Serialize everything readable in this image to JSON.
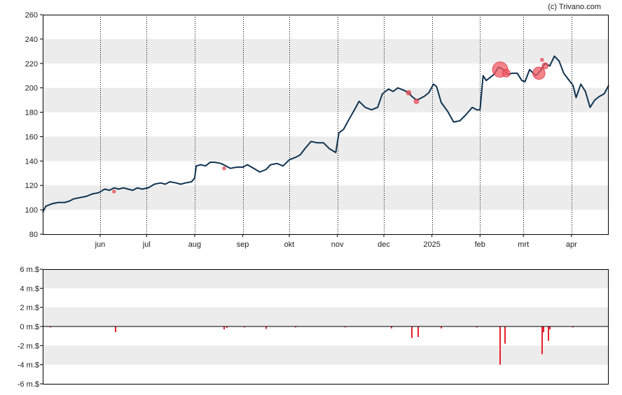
{
  "credit": "(c) Trivano.com",
  "colors": {
    "price_line": "#0f3350",
    "band": "#ececec",
    "volume_bar": "#e8212b",
    "insider_marker": "#f05a64",
    "axis": "#000000"
  },
  "chart_data": [
    {
      "type": "line",
      "title": "",
      "xlabel": "",
      "ylabel": "",
      "ylim": [
        80,
        260
      ],
      "yticks": [
        80,
        100,
        120,
        140,
        160,
        180,
        200,
        220,
        240,
        260
      ],
      "ytick_labels": [
        "80",
        "100",
        "120",
        "140",
        "160",
        "180",
        "200",
        "220",
        "240",
        "260"
      ],
      "xlim": [
        "2024-04-25",
        "2025-04-25"
      ],
      "xticks": [
        {
          "date": "2024-06-01",
          "label": "jun"
        },
        {
          "date": "2024-07-01",
          "label": "jul"
        },
        {
          "date": "2024-08-01",
          "label": "aug"
        },
        {
          "date": "2024-09-01",
          "label": "sep"
        },
        {
          "date": "2024-10-01",
          "label": "okt"
        },
        {
          "date": "2024-11-01",
          "label": "nov"
        },
        {
          "date": "2024-12-01",
          "label": "dec"
        },
        {
          "date": "2025-01-01",
          "label": "2025"
        },
        {
          "date": "2025-02-01",
          "label": "feb"
        },
        {
          "date": "2025-03-01",
          "label": "mrt"
        },
        {
          "date": "2025-04-01",
          "label": "apr"
        }
      ],
      "grid": "dotted vertical lines at month ticks, alternating horizontal bands",
      "series": [
        {
          "points": [
            [
              "2024-04-25",
              98
            ],
            [
              "2024-04-27",
              103
            ],
            [
              "2024-05-01",
              105
            ],
            [
              "2024-05-05",
              106
            ],
            [
              "2024-05-09",
              106
            ],
            [
              "2024-05-12",
              107
            ],
            [
              "2024-05-15",
              109
            ],
            [
              "2024-05-19",
              110
            ],
            [
              "2024-05-23",
              111
            ],
            [
              "2024-05-27",
              113
            ],
            [
              "2024-05-31",
              114
            ],
            [
              "2024-06-04",
              117
            ],
            [
              "2024-06-07",
              116
            ],
            [
              "2024-06-10",
              118
            ],
            [
              "2024-06-13",
              117
            ],
            [
              "2024-06-16",
              118
            ],
            [
              "2024-06-19",
              117
            ],
            [
              "2024-06-22",
              116
            ],
            [
              "2024-06-25",
              118
            ],
            [
              "2024-06-28",
              117
            ],
            [
              "2024-07-02",
              118
            ],
            [
              "2024-07-06",
              121
            ],
            [
              "2024-07-10",
              122
            ],
            [
              "2024-07-13",
              121
            ],
            [
              "2024-07-16",
              123
            ],
            [
              "2024-07-20",
              122
            ],
            [
              "2024-07-23",
              121
            ],
            [
              "2024-07-26",
              122
            ],
            [
              "2024-07-30",
              123
            ],
            [
              "2024-08-01",
              126
            ],
            [
              "2024-08-02",
              136
            ],
            [
              "2024-08-05",
              137
            ],
            [
              "2024-08-08",
              136
            ],
            [
              "2024-08-11",
              139
            ],
            [
              "2024-08-14",
              139
            ],
            [
              "2024-08-18",
              138
            ],
            [
              "2024-08-21",
              136
            ],
            [
              "2024-08-24",
              134
            ],
            [
              "2024-08-28",
              135
            ],
            [
              "2024-09-01",
              135
            ],
            [
              "2024-09-04",
              137
            ],
            [
              "2024-09-08",
              134
            ],
            [
              "2024-09-12",
              131
            ],
            [
              "2024-09-16",
              133
            ],
            [
              "2024-09-19",
              137
            ],
            [
              "2024-09-23",
              138
            ],
            [
              "2024-09-27",
              136
            ],
            [
              "2024-10-01",
              141
            ],
            [
              "2024-10-05",
              143
            ],
            [
              "2024-10-08",
              145
            ],
            [
              "2024-10-11",
              150
            ],
            [
              "2024-10-15",
              156
            ],
            [
              "2024-10-19",
              155
            ],
            [
              "2024-10-23",
              155
            ],
            [
              "2024-10-27",
              150
            ],
            [
              "2024-10-31",
              147
            ],
            [
              "2024-11-02",
              163
            ],
            [
              "2024-11-05",
              166
            ],
            [
              "2024-11-08",
              173
            ],
            [
              "2024-11-12",
              182
            ],
            [
              "2024-11-15",
              189
            ],
            [
              "2024-11-19",
              184
            ],
            [
              "2024-11-23",
              182
            ],
            [
              "2024-11-27",
              184
            ],
            [
              "2024-11-30",
              195
            ],
            [
              "2024-12-04",
              199
            ],
            [
              "2024-12-07",
              197
            ],
            [
              "2024-12-10",
              200
            ],
            [
              "2024-12-14",
              198
            ],
            [
              "2024-12-17",
              196
            ],
            [
              "2024-12-19",
              193
            ],
            [
              "2024-12-22",
              190
            ],
            [
              "2024-12-24",
              191
            ],
            [
              "2024-12-27",
              193
            ],
            [
              "2024-12-30",
              196
            ],
            [
              "2025-01-02",
              203
            ],
            [
              "2025-01-04",
              201
            ],
            [
              "2025-01-07",
              188
            ],
            [
              "2025-01-11",
              181
            ],
            [
              "2025-01-15",
              172
            ],
            [
              "2025-01-19",
              173
            ],
            [
              "2025-01-23",
              178
            ],
            [
              "2025-01-27",
              184
            ],
            [
              "2025-01-30",
              182
            ],
            [
              "2025-02-01",
              182
            ],
            [
              "2025-02-03",
              210
            ],
            [
              "2025-02-05",
              206
            ],
            [
              "2025-02-07",
              208
            ],
            [
              "2025-02-10",
              211
            ],
            [
              "2025-02-13",
              217
            ],
            [
              "2025-02-16",
              215
            ],
            [
              "2025-02-19",
              211
            ],
            [
              "2025-02-22",
              212
            ],
            [
              "2025-02-25",
              212
            ],
            [
              "2025-02-28",
              206
            ],
            [
              "2025-03-02",
              205
            ],
            [
              "2025-03-05",
              215
            ],
            [
              "2025-03-09",
              210
            ],
            [
              "2025-03-12",
              214
            ],
            [
              "2025-03-15",
              220
            ],
            [
              "2025-03-18",
              218
            ],
            [
              "2025-03-21",
              226
            ],
            [
              "2025-03-24",
              222
            ],
            [
              "2025-03-27",
              212
            ],
            [
              "2025-03-30",
              207
            ],
            [
              "2025-04-02",
              202
            ],
            [
              "2025-04-04",
              192
            ],
            [
              "2025-04-07",
              203
            ],
            [
              "2025-04-10",
              197
            ],
            [
              "2025-04-13",
              184
            ],
            [
              "2025-04-16",
              190
            ],
            [
              "2025-04-19",
              193
            ],
            [
              "2025-04-22",
              195
            ],
            [
              "2025-04-25",
              202
            ]
          ]
        }
      ],
      "markers": [
        {
          "date": "2024-06-10",
          "value": 115,
          "size": 1
        },
        {
          "date": "2024-08-20",
          "value": 134,
          "size": 1
        },
        {
          "date": "2024-12-17",
          "value": 196,
          "size": 1.5
        },
        {
          "date": "2024-12-22",
          "value": 189,
          "size": 1.5
        },
        {
          "date": "2025-02-14",
          "value": 215,
          "size": 5
        },
        {
          "date": "2025-02-18",
          "value": 212,
          "size": 2.5
        },
        {
          "date": "2025-03-11",
          "value": 212,
          "size": 4
        },
        {
          "date": "2025-03-13",
          "value": 223,
          "size": 1
        },
        {
          "date": "2025-03-15",
          "value": 218,
          "size": 2
        }
      ]
    },
    {
      "type": "bar",
      "title": "",
      "xlabel": "",
      "ylabel": "",
      "ylim": [
        -6,
        6
      ],
      "yticks": [
        6,
        4,
        2,
        0,
        -2,
        -4,
        -6
      ],
      "ytick_labels": [
        "6 m.$",
        "4 m.$",
        "2 m.$",
        "0 m.$",
        "-2 m.$",
        "-4 m.$",
        "-6 m.$"
      ],
      "series": [
        {
          "points": [
            [
              "2024-04-30",
              -0.1
            ],
            [
              "2024-06-11",
              -0.6
            ],
            [
              "2024-08-20",
              -0.3
            ],
            [
              "2024-08-22",
              -0.15
            ],
            [
              "2024-09-02",
              -0.1
            ],
            [
              "2024-09-16",
              -0.25
            ],
            [
              "2024-10-05",
              -0.1
            ],
            [
              "2024-11-06",
              -0.1
            ],
            [
              "2024-12-06",
              -0.2
            ],
            [
              "2024-12-19",
              -1.2
            ],
            [
              "2024-12-23",
              -1.1
            ],
            [
              "2025-01-07",
              -0.2
            ],
            [
              "2025-01-30",
              -0.1
            ],
            [
              "2025-02-14",
              -4.0
            ],
            [
              "2025-02-17",
              -1.8
            ],
            [
              "2025-03-13",
              -2.9
            ],
            [
              "2025-03-14",
              -0.6
            ],
            [
              "2025-03-17",
              -1.5
            ],
            [
              "2025-03-18",
              -0.3
            ],
            [
              "2025-04-02",
              -0.1
            ]
          ]
        }
      ]
    }
  ]
}
